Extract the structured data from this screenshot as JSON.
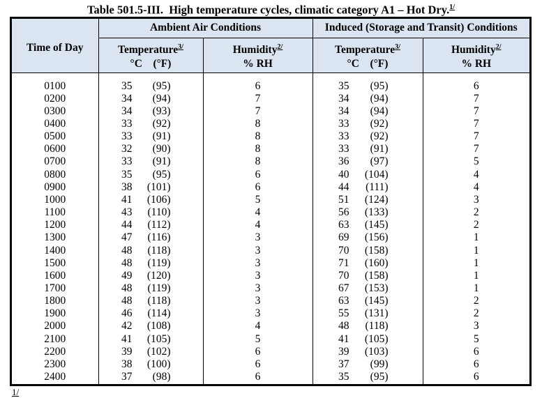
{
  "title": {
    "text": "Table 501.5-III.  High temperature cycles, climatic category A1 – Hot Dry.",
    "sup": "1/"
  },
  "colors": {
    "header_bg": "#dbe5f1",
    "border": "#000000"
  },
  "table": {
    "corner_header": "Time of Day",
    "group_headers": {
      "ambient": "Ambient Air Conditions",
      "induced": "Induced (Storage and Transit) Conditions"
    },
    "sub_headers": {
      "temperature": {
        "label": "Temperature",
        "sup": "3/",
        "units": "°C    (°F)"
      },
      "humidity": {
        "label": "Humidity",
        "sup": "2/",
        "units": "% RH"
      }
    },
    "rows": [
      {
        "time": "0100",
        "amb_c": "35",
        "amb_f": "(95)",
        "amb_rh": "6",
        "ind_c": "35",
        "ind_f": "(95)",
        "ind_rh": "6"
      },
      {
        "time": "0200",
        "amb_c": "34",
        "amb_f": "(94)",
        "amb_rh": "7",
        "ind_c": "34",
        "ind_f": "(94)",
        "ind_rh": "7"
      },
      {
        "time": "0300",
        "amb_c": "34",
        "amb_f": "(93)",
        "amb_rh": "7",
        "ind_c": "34",
        "ind_f": "(94)",
        "ind_rh": "7"
      },
      {
        "time": "0400",
        "amb_c": "33",
        "amb_f": "(92)",
        "amb_rh": "8",
        "ind_c": "33",
        "ind_f": "(92)",
        "ind_rh": "7"
      },
      {
        "time": "0500",
        "amb_c": "33",
        "amb_f": "(91)",
        "amb_rh": "8",
        "ind_c": "33",
        "ind_f": "(92)",
        "ind_rh": "7"
      },
      {
        "time": "0600",
        "amb_c": "32",
        "amb_f": "(90)",
        "amb_rh": "8",
        "ind_c": "33",
        "ind_f": "(91)",
        "ind_rh": "7"
      },
      {
        "time": "0700",
        "amb_c": "33",
        "amb_f": "(91)",
        "amb_rh": "8",
        "ind_c": "36",
        "ind_f": "(97)",
        "ind_rh": "5"
      },
      {
        "time": "0800",
        "amb_c": "35",
        "amb_f": "(95)",
        "amb_rh": "6",
        "ind_c": "40",
        "ind_f": "(104)",
        "ind_rh": "4"
      },
      {
        "time": "0900",
        "amb_c": "38",
        "amb_f": "(101)",
        "amb_rh": "6",
        "ind_c": "44",
        "ind_f": "(111)",
        "ind_rh": "4"
      },
      {
        "time": "1000",
        "amb_c": "41",
        "amb_f": "(106)",
        "amb_rh": "5",
        "ind_c": "51",
        "ind_f": "(124)",
        "ind_rh": "3"
      },
      {
        "time": "1100",
        "amb_c": "43",
        "amb_f": "(110)",
        "amb_rh": "4",
        "ind_c": "56",
        "ind_f": "(133)",
        "ind_rh": "2"
      },
      {
        "time": "1200",
        "amb_c": "44",
        "amb_f": "(112)",
        "amb_rh": "4",
        "ind_c": "63",
        "ind_f": "(145)",
        "ind_rh": "2"
      },
      {
        "time": "1300",
        "amb_c": "47",
        "amb_f": "(116)",
        "amb_rh": "3",
        "ind_c": "69",
        "ind_f": "(156)",
        "ind_rh": "1"
      },
      {
        "time": "1400",
        "amb_c": "48",
        "amb_f": "(118)",
        "amb_rh": "3",
        "ind_c": "70",
        "ind_f": "(158)",
        "ind_rh": "1"
      },
      {
        "time": "1500",
        "amb_c": "48",
        "amb_f": "(119)",
        "amb_rh": "3",
        "ind_c": "71",
        "ind_f": "(160)",
        "ind_rh": "1"
      },
      {
        "time": "1600",
        "amb_c": "49",
        "amb_f": "(120)",
        "amb_rh": "3",
        "ind_c": "70",
        "ind_f": "(158)",
        "ind_rh": "1"
      },
      {
        "time": "1700",
        "amb_c": "48",
        "amb_f": "(119)",
        "amb_rh": "3",
        "ind_c": "67",
        "ind_f": "(153)",
        "ind_rh": "1"
      },
      {
        "time": "1800",
        "amb_c": "48",
        "amb_f": "(118)",
        "amb_rh": "3",
        "ind_c": "63",
        "ind_f": "(145)",
        "ind_rh": "2"
      },
      {
        "time": "1900",
        "amb_c": "46",
        "amb_f": "(114)",
        "amb_rh": "3",
        "ind_c": "55",
        "ind_f": "(131)",
        "ind_rh": "2"
      },
      {
        "time": "2000",
        "amb_c": "42",
        "amb_f": "(108)",
        "amb_rh": "4",
        "ind_c": "48",
        "ind_f": "(118)",
        "ind_rh": "3"
      },
      {
        "time": "2100",
        "amb_c": "41",
        "amb_f": "(105)",
        "amb_rh": "5",
        "ind_c": "41",
        "ind_f": "(105)",
        "ind_rh": "5"
      },
      {
        "time": "2200",
        "amb_c": "39",
        "amb_f": "(102)",
        "amb_rh": "6",
        "ind_c": "39",
        "ind_f": "(103)",
        "ind_rh": "6"
      },
      {
        "time": "2300",
        "amb_c": "38",
        "amb_f": "(100)",
        "amb_rh": "6",
        "ind_c": "37",
        "ind_f": "(99)",
        "ind_rh": "6"
      },
      {
        "time": "2400",
        "amb_c": "37",
        "amb_f": "(98)",
        "amb_rh": "6",
        "ind_c": "35",
        "ind_f": "(95)",
        "ind_rh": "6"
      }
    ]
  },
  "footnote_marker": "1/"
}
